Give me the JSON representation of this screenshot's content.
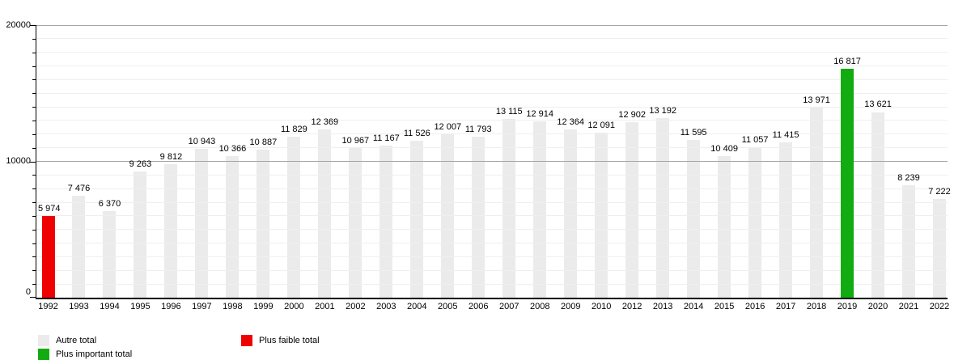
{
  "chart_data": {
    "type": "bar",
    "title": "",
    "xlabel": "",
    "ylabel": "",
    "ylim": [
      0,
      20000
    ],
    "grid_step": 1000,
    "major_step": 10000,
    "grid": "horizontal",
    "ytick_labels": [
      "0",
      "10000",
      "20000"
    ],
    "categories": [
      "1992",
      "1993",
      "1994",
      "1995",
      "1996",
      "1997",
      "1998",
      "1999",
      "2000",
      "2001",
      "2002",
      "2003",
      "2004",
      "2005",
      "2006",
      "2007",
      "2008",
      "2009",
      "2010",
      "2012",
      "2013",
      "2014",
      "2015",
      "2016",
      "2017",
      "2018",
      "2019",
      "2020",
      "2021",
      "2022"
    ],
    "values": [
      5974,
      7476,
      6370,
      9263,
      9812,
      10943,
      10366,
      10887,
      11829,
      12369,
      10967,
      11167,
      11526,
      12007,
      11793,
      13115,
      12914,
      12364,
      12091,
      12902,
      13192,
      11595,
      10409,
      11057,
      11415,
      13971,
      16817,
      13621,
      8239,
      7222
    ],
    "value_labels": [
      "5 974",
      "7 476",
      "6 370",
      "9 263",
      "9 812",
      "10 943",
      "10 366",
      "10 887",
      "11 829",
      "12 369",
      "10 967",
      "11 167",
      "11 526",
      "12 007",
      "11 793",
      "13 115",
      "12 914",
      "12 364",
      "12 091",
      "12 902",
      "13 192",
      "11 595",
      "10 409",
      "11 057",
      "11 415",
      "13 971",
      "16 817",
      "13 621",
      "8 239",
      "7 222"
    ],
    "highlights": {
      "min_year": "1992",
      "max_year": "2019"
    },
    "colors": {
      "other": "#ebebeb",
      "min": "#ee0101",
      "max": "#12ab12"
    },
    "legend": [
      {
        "label": "Autre total",
        "color": "#ebebeb"
      },
      {
        "label": "Plus faible total",
        "color": "#ee0101"
      },
      {
        "label": "Plus important total",
        "color": "#12ab12"
      }
    ],
    "legend_position": "bottom-left"
  }
}
